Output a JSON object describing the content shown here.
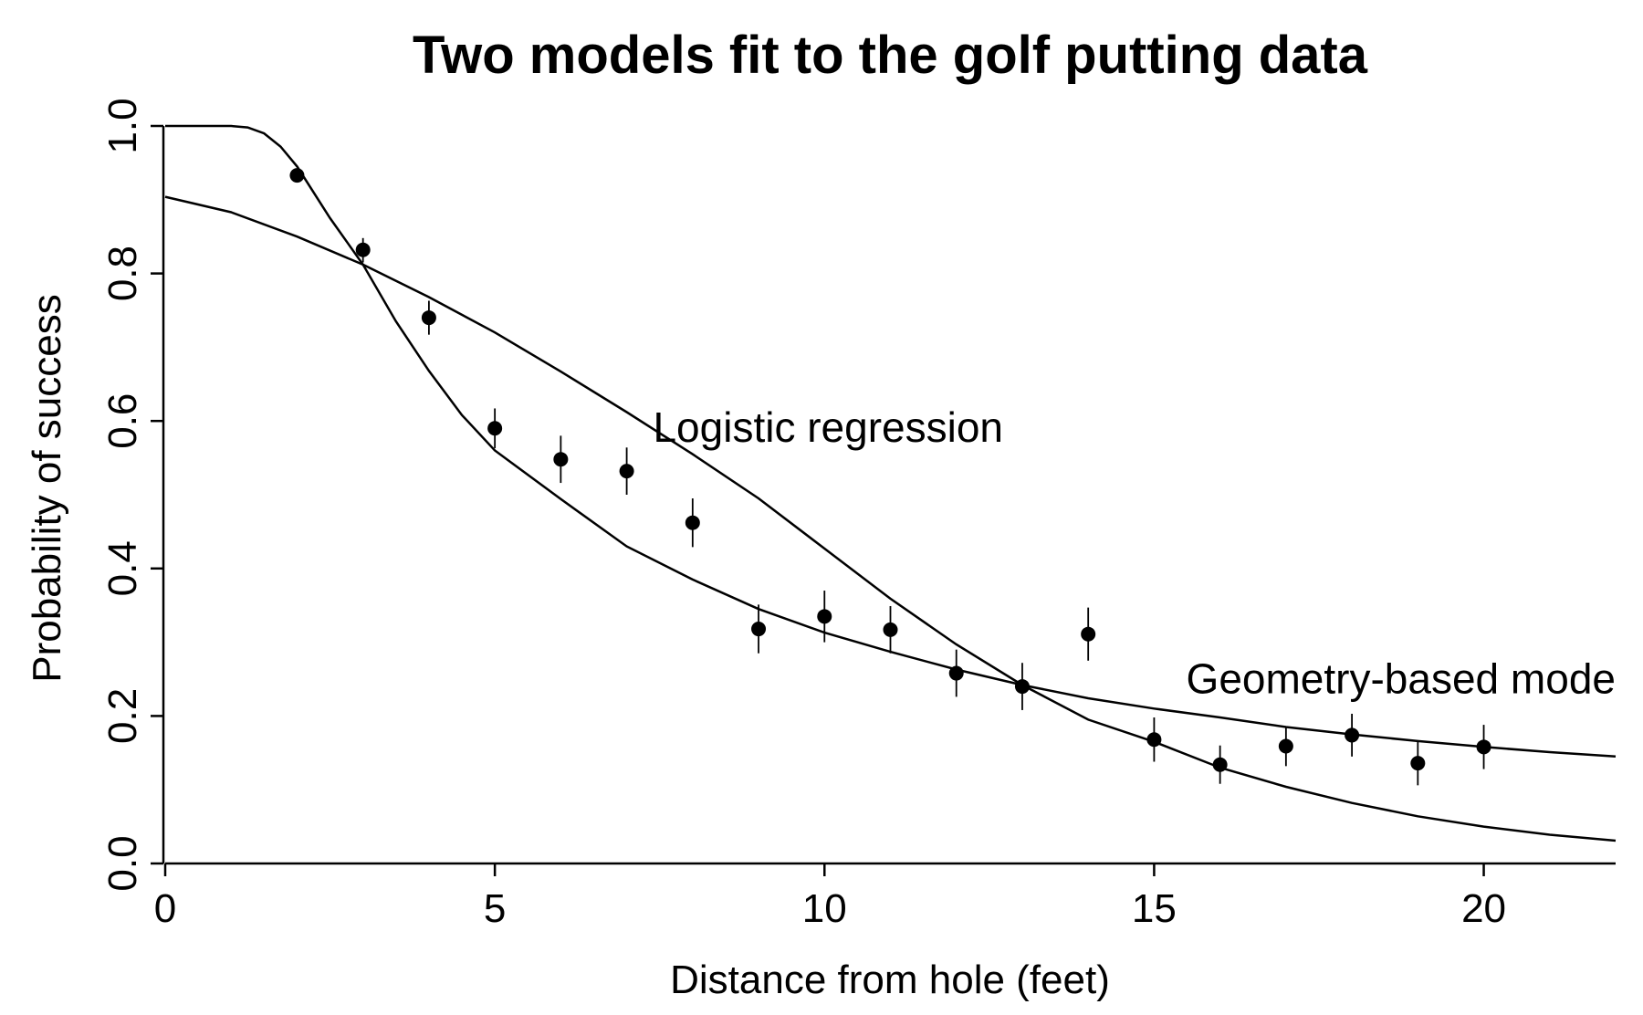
{
  "chart_data": {
    "type": "scatter",
    "title": "Two models fit to the golf putting data",
    "xlabel": "Distance from hole (feet)",
    "ylabel": "Probability of success",
    "xlim": [
      0,
      22
    ],
    "ylim": [
      0,
      1
    ],
    "x_ticks": [
      0,
      5,
      10,
      15,
      20
    ],
    "y_ticks": [
      0.0,
      0.2,
      0.4,
      0.6,
      0.8,
      1.0
    ],
    "x_tick_labels": [
      "0",
      "5",
      "10",
      "15",
      "20"
    ],
    "y_tick_labels": [
      "0.0",
      "0.2",
      "0.4",
      "0.6",
      "0.8",
      "1.0"
    ],
    "grid": false,
    "points": [
      {
        "x": 2,
        "y": 0.933,
        "lo": 0.925,
        "hi": 0.942
      },
      {
        "x": 3,
        "y": 0.832,
        "lo": 0.815,
        "hi": 0.848
      },
      {
        "x": 4,
        "y": 0.74,
        "lo": 0.717,
        "hi": 0.763
      },
      {
        "x": 5,
        "y": 0.59,
        "lo": 0.563,
        "hi": 0.617
      },
      {
        "x": 6,
        "y": 0.548,
        "lo": 0.516,
        "hi": 0.58
      },
      {
        "x": 7,
        "y": 0.532,
        "lo": 0.5,
        "hi": 0.564
      },
      {
        "x": 8,
        "y": 0.462,
        "lo": 0.429,
        "hi": 0.495
      },
      {
        "x": 9,
        "y": 0.318,
        "lo": 0.285,
        "hi": 0.351
      },
      {
        "x": 10,
        "y": 0.335,
        "lo": 0.3,
        "hi": 0.37
      },
      {
        "x": 11,
        "y": 0.317,
        "lo": 0.285,
        "hi": 0.349
      },
      {
        "x": 12,
        "y": 0.258,
        "lo": 0.226,
        "hi": 0.29
      },
      {
        "x": 13,
        "y": 0.24,
        "lo": 0.208,
        "hi": 0.272
      },
      {
        "x": 14,
        "y": 0.311,
        "lo": 0.275,
        "hi": 0.347
      },
      {
        "x": 15,
        "y": 0.168,
        "lo": 0.138,
        "hi": 0.198
      },
      {
        "x": 16,
        "y": 0.134,
        "lo": 0.108,
        "hi": 0.16
      },
      {
        "x": 17,
        "y": 0.159,
        "lo": 0.132,
        "hi": 0.186
      },
      {
        "x": 18,
        "y": 0.174,
        "lo": 0.145,
        "hi": 0.203
      },
      {
        "x": 19,
        "y": 0.136,
        "lo": 0.106,
        "hi": 0.166
      },
      {
        "x": 20,
        "y": 0.158,
        "lo": 0.128,
        "hi": 0.188
      }
    ],
    "curves": [
      {
        "label": "Logistic regression",
        "x": [
          0,
          1,
          2,
          3,
          4,
          5,
          6,
          7,
          8,
          9,
          10,
          11,
          12,
          13,
          14,
          15,
          16,
          17,
          18,
          19,
          20,
          21,
          22
        ],
        "y": [
          0.904,
          0.883,
          0.85,
          0.812,
          0.768,
          0.72,
          0.667,
          0.612,
          0.555,
          0.495,
          0.427,
          0.359,
          0.297,
          0.242,
          0.195,
          0.165,
          0.13,
          0.104,
          0.082,
          0.064,
          0.05,
          0.039,
          0.031
        ]
      },
      {
        "label": "Geometry-based mode",
        "x": [
          0,
          1,
          1.25,
          1.5,
          1.75,
          2,
          2.5,
          3,
          3.5,
          4,
          4.5,
          5,
          6,
          7,
          8,
          9,
          10,
          11,
          12,
          13,
          14,
          15,
          16,
          17,
          18,
          19,
          20,
          21,
          22
        ],
        "y": [
          1.0,
          1.0,
          0.998,
          0.99,
          0.972,
          0.945,
          0.875,
          0.812,
          0.735,
          0.668,
          0.608,
          0.56,
          0.494,
          0.43,
          0.385,
          0.345,
          0.313,
          0.287,
          0.263,
          0.242,
          0.224,
          0.21,
          0.198,
          0.185,
          0.175,
          0.166,
          0.158,
          0.151,
          0.145
        ]
      }
    ]
  }
}
